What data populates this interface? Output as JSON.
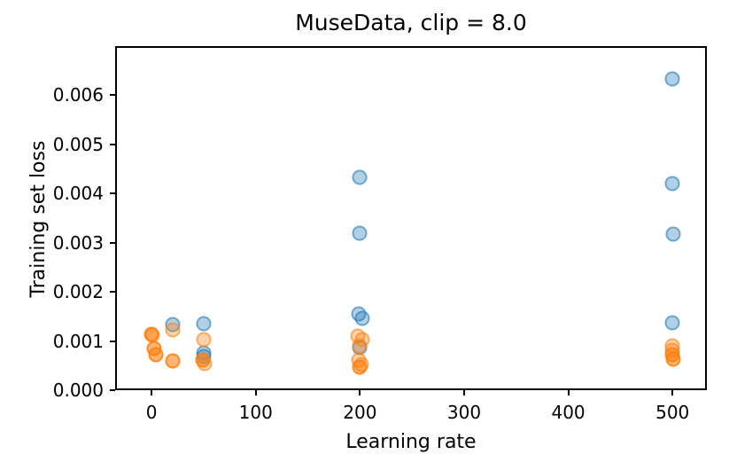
{
  "chart_data": {
    "type": "scatter",
    "title": "MuseData, clip = 8.0",
    "xlabel": "Learning rate",
    "ylabel": "Training set loss",
    "xlim": [
      -35,
      533
    ],
    "ylim": [
      0,
      0.007
    ],
    "grid": false,
    "legend": "none",
    "x_ticks": [
      0,
      100,
      200,
      300,
      400,
      500
    ],
    "x_tick_labels": [
      "0",
      "100",
      "200",
      "300",
      "400",
      "500"
    ],
    "y_ticks": [
      0,
      0.001,
      0.002,
      0.003,
      0.004,
      0.005,
      0.006
    ],
    "y_tick_labels": [
      "0.000",
      "0.001",
      "0.002",
      "0.003",
      "0.004",
      "0.005",
      "0.006"
    ],
    "series": [
      {
        "name": "blue-series",
        "color": "#1f77b4",
        "face_alpha": 0.35,
        "edge_alpha": 0.5,
        "points": [
          [
            20,
            0.00134
          ],
          [
            50,
            0.00135
          ],
          [
            50,
            0.00076
          ],
          [
            50,
            0.00068
          ],
          [
            200,
            0.00433
          ],
          [
            200,
            0.00319
          ],
          [
            199,
            0.00155
          ],
          [
            202,
            0.00147
          ],
          [
            200,
            0.00087
          ],
          [
            500,
            0.00634
          ],
          [
            500,
            0.0042
          ],
          [
            501,
            0.00317
          ],
          [
            500,
            0.00137
          ]
        ]
      },
      {
        "name": "orange-series",
        "color": "#ff7f0e",
        "face_alpha": 0.35,
        "edge_alpha": 0.5,
        "points": [
          [
            0,
            0.00114
          ],
          [
            0,
            0.00114
          ],
          [
            1,
            0.00112
          ],
          [
            2,
            0.00085
          ],
          [
            2,
            0.00085
          ],
          [
            4,
            0.00072
          ],
          [
            4,
            0.00072
          ],
          [
            20,
            0.00122
          ],
          [
            20,
            0.0006
          ],
          [
            20,
            0.0006
          ],
          [
            50,
            0.00103
          ],
          [
            49,
            0.00062
          ],
          [
            49,
            0.00062
          ],
          [
            51,
            0.00055
          ],
          [
            198,
            0.0011
          ],
          [
            202,
            0.00103
          ],
          [
            200,
            0.0009
          ],
          [
            199,
            0.00061
          ],
          [
            201,
            0.00052
          ],
          [
            200,
            0.00047
          ],
          [
            200,
            0.00047
          ],
          [
            500,
            0.00091
          ],
          [
            500,
            0.00081
          ],
          [
            500,
            0.00072
          ],
          [
            500,
            0.00072
          ],
          [
            501,
            0.00063
          ],
          [
            501,
            0.00063
          ]
        ]
      }
    ]
  }
}
